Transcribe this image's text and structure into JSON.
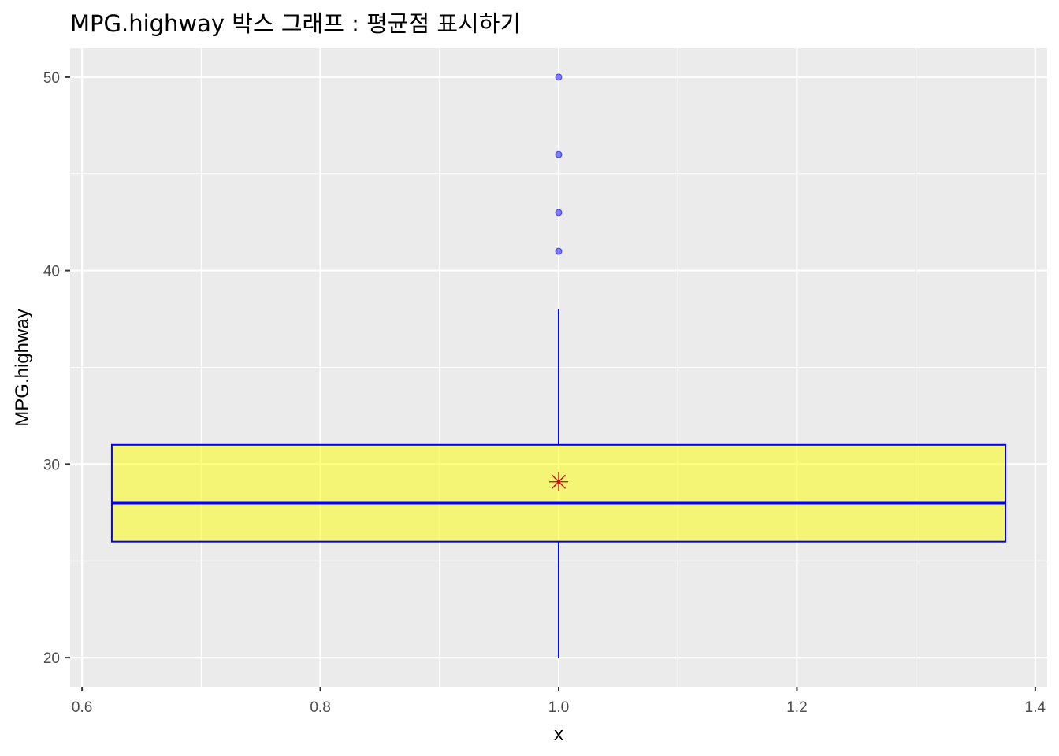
{
  "chart_data": {
    "type": "box",
    "title": "MPG.highway 박스 그래프 : 평균점 표시하기",
    "xlabel": "x",
    "ylabel": "MPG.highway",
    "xlim": [
      0.59,
      1.41
    ],
    "ylim": [
      18.5,
      51.5
    ],
    "x_ticks": [
      "0.6",
      "0.8",
      "1.0",
      "1.2",
      "1.4"
    ],
    "x_tick_values": [
      0.6,
      0.8,
      1.0,
      1.2,
      1.4
    ],
    "y_ticks": [
      "20",
      "30",
      "40",
      "50"
    ],
    "y_tick_values": [
      20,
      30,
      40,
      50
    ],
    "grid": true,
    "box": {
      "x": 1.0,
      "x_min": 0.625,
      "x_max": 1.375,
      "whisker_low": 20,
      "q1": 26,
      "median": 28,
      "q3": 31,
      "whisker_high": 38,
      "mean": 29.09,
      "outliers": [
        41,
        43,
        46,
        50
      ]
    },
    "colors": {
      "panel_bg": "#ebebeb",
      "grid": "#ffffff",
      "box_fill": "#ffff00",
      "box_fill_opacity": 0.5,
      "box_line": "#0000ff",
      "outlier": "#0000ff",
      "mean_marker": "#cc0000"
    }
  }
}
